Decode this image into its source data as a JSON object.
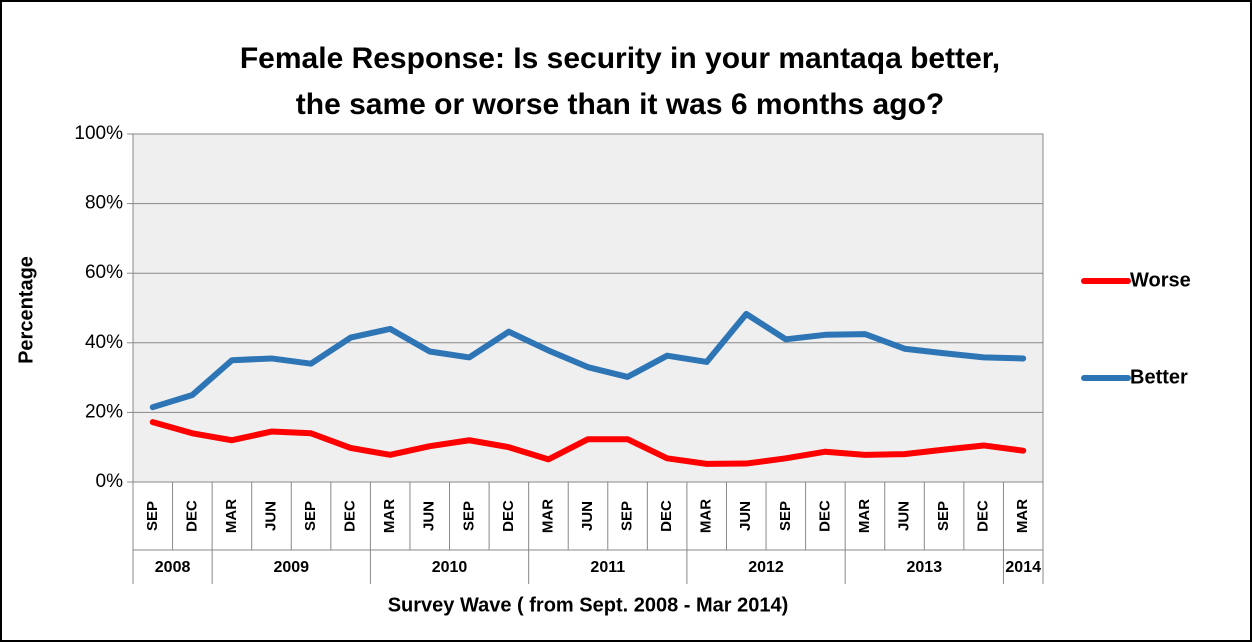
{
  "chart_data": {
    "type": "line",
    "title": [
      "Female Response: Is security in your mantaqa better,",
      "the same or worse than it was 6 months ago?"
    ],
    "x_label": "Survey Wave ( from Sept. 2008 - Mar 2014)",
    "y_label": "Percentage",
    "category_groups": [
      {
        "label": "2008",
        "categories": [
          "SEP",
          "DEC"
        ]
      },
      {
        "label": "2009",
        "categories": [
          "MAR",
          "JUN",
          "SEP",
          "DEC"
        ]
      },
      {
        "label": "2010",
        "categories": [
          "MAR",
          "JUN",
          "SEP",
          "DEC"
        ]
      },
      {
        "label": "2011",
        "categories": [
          "MAR",
          "JUN",
          "SEP",
          "DEC"
        ]
      },
      {
        "label": "2012",
        "categories": [
          "MAR",
          "JUN",
          "SEP",
          "DEC"
        ]
      },
      {
        "label": "2013",
        "categories": [
          "MAR",
          "JUN",
          "SEP",
          "DEC"
        ]
      },
      {
        "label": "2014",
        "categories": [
          "MAR"
        ]
      }
    ],
    "series": [
      {
        "name": "Worse",
        "color": "#ff0000",
        "values": [
          17.2,
          14,
          12,
          14.5,
          14,
          9.8,
          7.8,
          10.3,
          12,
          10,
          6.5,
          12.3,
          12.3,
          6.8,
          5.2,
          5.3,
          6.8,
          8.7,
          7.8,
          8,
          9.3,
          10.5,
          9
        ]
      },
      {
        "name": "Better",
        "color": "#2e75b6",
        "values": [
          21.5,
          25,
          35,
          35.5,
          34,
          41.5,
          44,
          37.5,
          35.8,
          43.2,
          37.8,
          33,
          30.2,
          36.3,
          34.5,
          48.3,
          41,
          42.3,
          42.5,
          38.3,
          37,
          35.8,
          35.5
        ]
      }
    ],
    "ylim": [
      0,
      100
    ],
    "yticks": [
      {
        "value": 0,
        "label": "0%"
      },
      {
        "value": 20,
        "label": "20%"
      },
      {
        "value": 40,
        "label": "40%"
      },
      {
        "value": 60,
        "label": "60%"
      },
      {
        "value": 80,
        "label": "80%"
      },
      {
        "value": 100,
        "label": "100%"
      }
    ],
    "grid": true,
    "legend": "right"
  }
}
